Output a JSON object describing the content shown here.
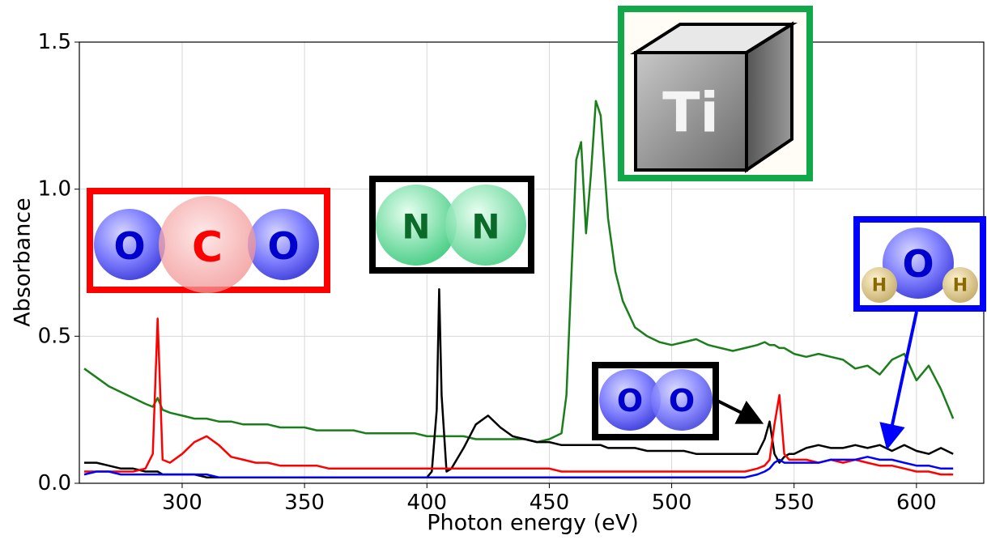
{
  "chart_data": {
    "type": "line",
    "xlabel": "Photon energy (eV)",
    "ylabel": "Absorbance",
    "xlim": [
      258,
      627.5
    ],
    "ylim": [
      0,
      1.5
    ],
    "xticks": [
      300,
      350,
      400,
      450,
      500,
      550,
      600
    ],
    "yticks": [
      {
        "value": 0,
        "label": "0.0"
      },
      {
        "value": 0.5,
        "label": "0.5"
      },
      {
        "value": 1,
        "label": "1.0"
      },
      {
        "value": 1.5,
        "label": "1.5"
      }
    ],
    "grid": true,
    "x": [
      260,
      265,
      270,
      275,
      280,
      285,
      288,
      290,
      292,
      295,
      300,
      305,
      310,
      315,
      320,
      325,
      330,
      335,
      340,
      345,
      350,
      355,
      360,
      365,
      370,
      375,
      380,
      385,
      390,
      395,
      400,
      402,
      404,
      405,
      406,
      408,
      410,
      415,
      420,
      425,
      430,
      435,
      440,
      445,
      450,
      455,
      457,
      459,
      461,
      463,
      465,
      467,
      469,
      471,
      474,
      477,
      480,
      485,
      490,
      495,
      500,
      505,
      510,
      515,
      520,
      525,
      530,
      535,
      538,
      540,
      542,
      544,
      546,
      548,
      550,
      555,
      560,
      565,
      570,
      575,
      580,
      585,
      590,
      595,
      600,
      605,
      610,
      615
    ],
    "series": [
      {
        "color": "#1a7f1a",
        "values": [
          0.39,
          0.36,
          0.33,
          0.31,
          0.29,
          0.27,
          0.26,
          0.29,
          0.25,
          0.24,
          0.23,
          0.22,
          0.22,
          0.21,
          0.21,
          0.2,
          0.2,
          0.2,
          0.19,
          0.19,
          0.19,
          0.18,
          0.18,
          0.18,
          0.18,
          0.17,
          0.17,
          0.17,
          0.17,
          0.17,
          0.16,
          0.16,
          0.16,
          0.16,
          0.16,
          0.16,
          0.16,
          0.16,
          0.15,
          0.15,
          0.15,
          0.15,
          0.15,
          0.14,
          0.15,
          0.17,
          0.3,
          0.7,
          1.1,
          1.16,
          0.85,
          1.05,
          1.3,
          1.25,
          0.9,
          0.72,
          0.62,
          0.53,
          0.5,
          0.48,
          0.47,
          0.48,
          0.49,
          0.47,
          0.46,
          0.45,
          0.46,
          0.47,
          0.48,
          0.47,
          0.47,
          0.46,
          0.46,
          0.45,
          0.44,
          0.43,
          0.44,
          0.43,
          0.42,
          0.39,
          0.4,
          0.37,
          0.42,
          0.44,
          0.35,
          0.4,
          0.32,
          0.22
        ]
      },
      {
        "color": "#000000",
        "values": [
          0.07,
          0.07,
          0.06,
          0.05,
          0.05,
          0.04,
          0.04,
          0.04,
          0.03,
          0.03,
          0.03,
          0.03,
          0.02,
          0.02,
          0.02,
          0.02,
          0.02,
          0.02,
          0.02,
          0.02,
          0.02,
          0.02,
          0.02,
          0.02,
          0.02,
          0.02,
          0.02,
          0.02,
          0.02,
          0.02,
          0.02,
          0.04,
          0.25,
          0.66,
          0.3,
          0.04,
          0.05,
          0.12,
          0.2,
          0.23,
          0.19,
          0.16,
          0.15,
          0.14,
          0.14,
          0.13,
          0.13,
          0.13,
          0.13,
          0.13,
          0.13,
          0.13,
          0.13,
          0.13,
          0.12,
          0.12,
          0.12,
          0.12,
          0.11,
          0.11,
          0.11,
          0.11,
          0.1,
          0.1,
          0.1,
          0.1,
          0.1,
          0.1,
          0.15,
          0.21,
          0.1,
          0.07,
          0.09,
          0.1,
          0.1,
          0.12,
          0.13,
          0.12,
          0.12,
          0.13,
          0.12,
          0.13,
          0.11,
          0.13,
          0.11,
          0.1,
          0.12,
          0.1
        ]
      },
      {
        "color": "#ff0000",
        "values": [
          0.04,
          0.04,
          0.04,
          0.04,
          0.04,
          0.05,
          0.1,
          0.56,
          0.08,
          0.07,
          0.1,
          0.14,
          0.16,
          0.13,
          0.09,
          0.08,
          0.07,
          0.07,
          0.06,
          0.06,
          0.06,
          0.06,
          0.05,
          0.05,
          0.05,
          0.05,
          0.05,
          0.05,
          0.05,
          0.05,
          0.05,
          0.05,
          0.05,
          0.05,
          0.05,
          0.05,
          0.05,
          0.05,
          0.05,
          0.05,
          0.05,
          0.05,
          0.05,
          0.05,
          0.05,
          0.04,
          0.04,
          0.04,
          0.04,
          0.04,
          0.04,
          0.04,
          0.04,
          0.04,
          0.04,
          0.04,
          0.04,
          0.04,
          0.04,
          0.04,
          0.04,
          0.04,
          0.04,
          0.04,
          0.04,
          0.04,
          0.04,
          0.05,
          0.06,
          0.08,
          0.2,
          0.3,
          0.1,
          0.08,
          0.08,
          0.08,
          0.07,
          0.08,
          0.07,
          0.08,
          0.07,
          0.06,
          0.06,
          0.05,
          0.04,
          0.04,
          0.03,
          0.03
        ]
      },
      {
        "color": "#0000ff",
        "values": [
          0.03,
          0.04,
          0.04,
          0.03,
          0.03,
          0.03,
          0.03,
          0.03,
          0.03,
          0.03,
          0.03,
          0.03,
          0.03,
          0.02,
          0.02,
          0.02,
          0.02,
          0.02,
          0.02,
          0.02,
          0.02,
          0.02,
          0.02,
          0.02,
          0.02,
          0.02,
          0.02,
          0.02,
          0.02,
          0.02,
          0.02,
          0.02,
          0.02,
          0.02,
          0.02,
          0.02,
          0.02,
          0.02,
          0.02,
          0.02,
          0.02,
          0.02,
          0.02,
          0.02,
          0.02,
          0.02,
          0.02,
          0.02,
          0.02,
          0.02,
          0.02,
          0.02,
          0.02,
          0.02,
          0.02,
          0.02,
          0.02,
          0.02,
          0.02,
          0.02,
          0.02,
          0.02,
          0.02,
          0.02,
          0.02,
          0.02,
          0.02,
          0.03,
          0.04,
          0.05,
          0.07,
          0.08,
          0.07,
          0.07,
          0.07,
          0.07,
          0.07,
          0.08,
          0.08,
          0.08,
          0.09,
          0.08,
          0.08,
          0.07,
          0.06,
          0.06,
          0.05,
          0.05
        ]
      }
    ],
    "annotations": [
      {
        "atoms": [
          "O",
          "C",
          "O"
        ]
      },
      {
        "atoms": [
          "N",
          "N"
        ]
      },
      {
        "atoms": [
          "Ti"
        ]
      },
      {
        "atoms": [
          "H",
          "O",
          "H"
        ]
      },
      {
        "atoms": [
          "O",
          "O"
        ]
      }
    ]
  }
}
